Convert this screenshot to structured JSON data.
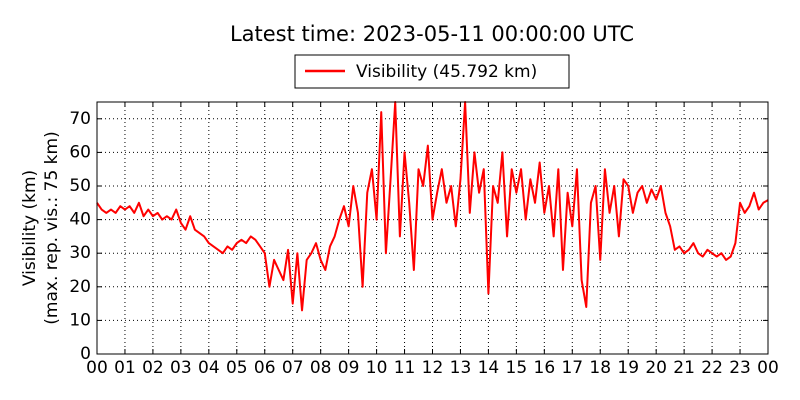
{
  "chart_data": {
    "type": "line",
    "title": "Latest time: 2023-05-11 00:00:00 UTC",
    "ylabel": [
      "Visibility (km)",
      "(max. rep. vis.: 75 km)"
    ],
    "x": [
      0,
      10,
      20,
      30,
      40,
      50,
      60,
      70,
      80,
      90,
      100,
      110,
      120,
      130,
      140,
      150,
      160,
      170,
      180,
      190,
      200,
      210,
      220,
      230,
      240,
      250,
      260,
      270,
      280,
      290,
      300,
      310,
      320,
      330,
      340,
      350,
      360,
      370,
      380,
      390,
      400,
      410,
      420,
      430,
      440,
      450,
      460,
      470,
      480,
      490,
      500,
      510,
      520,
      530,
      540,
      550,
      560,
      570,
      580,
      590,
      600,
      610,
      620,
      630,
      640,
      650,
      660,
      670,
      680,
      690,
      700,
      710,
      720,
      730,
      740,
      750,
      760,
      770,
      780,
      790,
      800,
      810,
      820,
      830,
      840,
      850,
      860,
      870,
      880,
      890,
      900,
      910,
      920,
      930,
      940,
      950,
      960,
      970,
      980,
      990,
      1000,
      1010,
      1020,
      1030,
      1040,
      1050,
      1060,
      1070,
      1080,
      1090,
      1100,
      1110,
      1120,
      1130,
      1140,
      1150,
      1160,
      1170,
      1180,
      1190,
      1200,
      1210,
      1220,
      1230,
      1240,
      1250,
      1260,
      1270,
      1280,
      1290,
      1300,
      1310,
      1320,
      1330,
      1340,
      1350,
      1360,
      1370,
      1380,
      1390,
      1400,
      1410,
      1420,
      1430,
      1440
    ],
    "series": [
      {
        "name": "Visibility (45.792 km)",
        "color": "#ff0000",
        "values": [
          45,
          43,
          42,
          43,
          42,
          44,
          43,
          44,
          42,
          45,
          41,
          43,
          41,
          42,
          40,
          41,
          40,
          43,
          39,
          37,
          41,
          37,
          36,
          35,
          33,
          32,
          31,
          30,
          32,
          31,
          33,
          34,
          33,
          35,
          34,
          32,
          30,
          20,
          28,
          25,
          22,
          31,
          15,
          30,
          13,
          28,
          30,
          33,
          28,
          25,
          32,
          35,
          40,
          44,
          38,
          50,
          42,
          20,
          48,
          55,
          40,
          72,
          30,
          52,
          75,
          35,
          60,
          45,
          25,
          55,
          50,
          62,
          40,
          48,
          55,
          45,
          50,
          38,
          52,
          75,
          42,
          60,
          48,
          55,
          18,
          50,
          45,
          60,
          35,
          55,
          48,
          55,
          40,
          52,
          45,
          57,
          42,
          50,
          35,
          55,
          25,
          48,
          38,
          55,
          22,
          14,
          45,
          50,
          28,
          55,
          42,
          50,
          35,
          52,
          50,
          42,
          48,
          50,
          45,
          49,
          46,
          50,
          42,
          38,
          31,
          32,
          30,
          31,
          33,
          30,
          29,
          31,
          30,
          29,
          30,
          28,
          29,
          33,
          45,
          42,
          44,
          48,
          43,
          45,
          45.792
        ]
      }
    ],
    "xlim": [
      0,
      1440
    ],
    "xticks": [
      {
        "value": 0,
        "label": "00"
      },
      {
        "value": 60,
        "label": "01"
      },
      {
        "value": 120,
        "label": "02"
      },
      {
        "value": 180,
        "label": "03"
      },
      {
        "value": 240,
        "label": "04"
      },
      {
        "value": 300,
        "label": "05"
      },
      {
        "value": 360,
        "label": "06"
      },
      {
        "value": 420,
        "label": "07"
      },
      {
        "value": 480,
        "label": "08"
      },
      {
        "value": 540,
        "label": "09"
      },
      {
        "value": 600,
        "label": "10"
      },
      {
        "value": 660,
        "label": "11"
      },
      {
        "value": 720,
        "label": "12"
      },
      {
        "value": 780,
        "label": "13"
      },
      {
        "value": 840,
        "label": "14"
      },
      {
        "value": 900,
        "label": "15"
      },
      {
        "value": 960,
        "label": "16"
      },
      {
        "value": 1020,
        "label": "17"
      },
      {
        "value": 1080,
        "label": "18"
      },
      {
        "value": 1140,
        "label": "19"
      },
      {
        "value": 1200,
        "label": "20"
      },
      {
        "value": 1260,
        "label": "21"
      },
      {
        "value": 1320,
        "label": "22"
      },
      {
        "value": 1380,
        "label": "23"
      },
      {
        "value": 1440,
        "label": "00"
      }
    ],
    "ylim": [
      0,
      75
    ],
    "yticks": [
      0,
      10,
      20,
      30,
      40,
      50,
      60,
      70
    ],
    "grid": true
  }
}
